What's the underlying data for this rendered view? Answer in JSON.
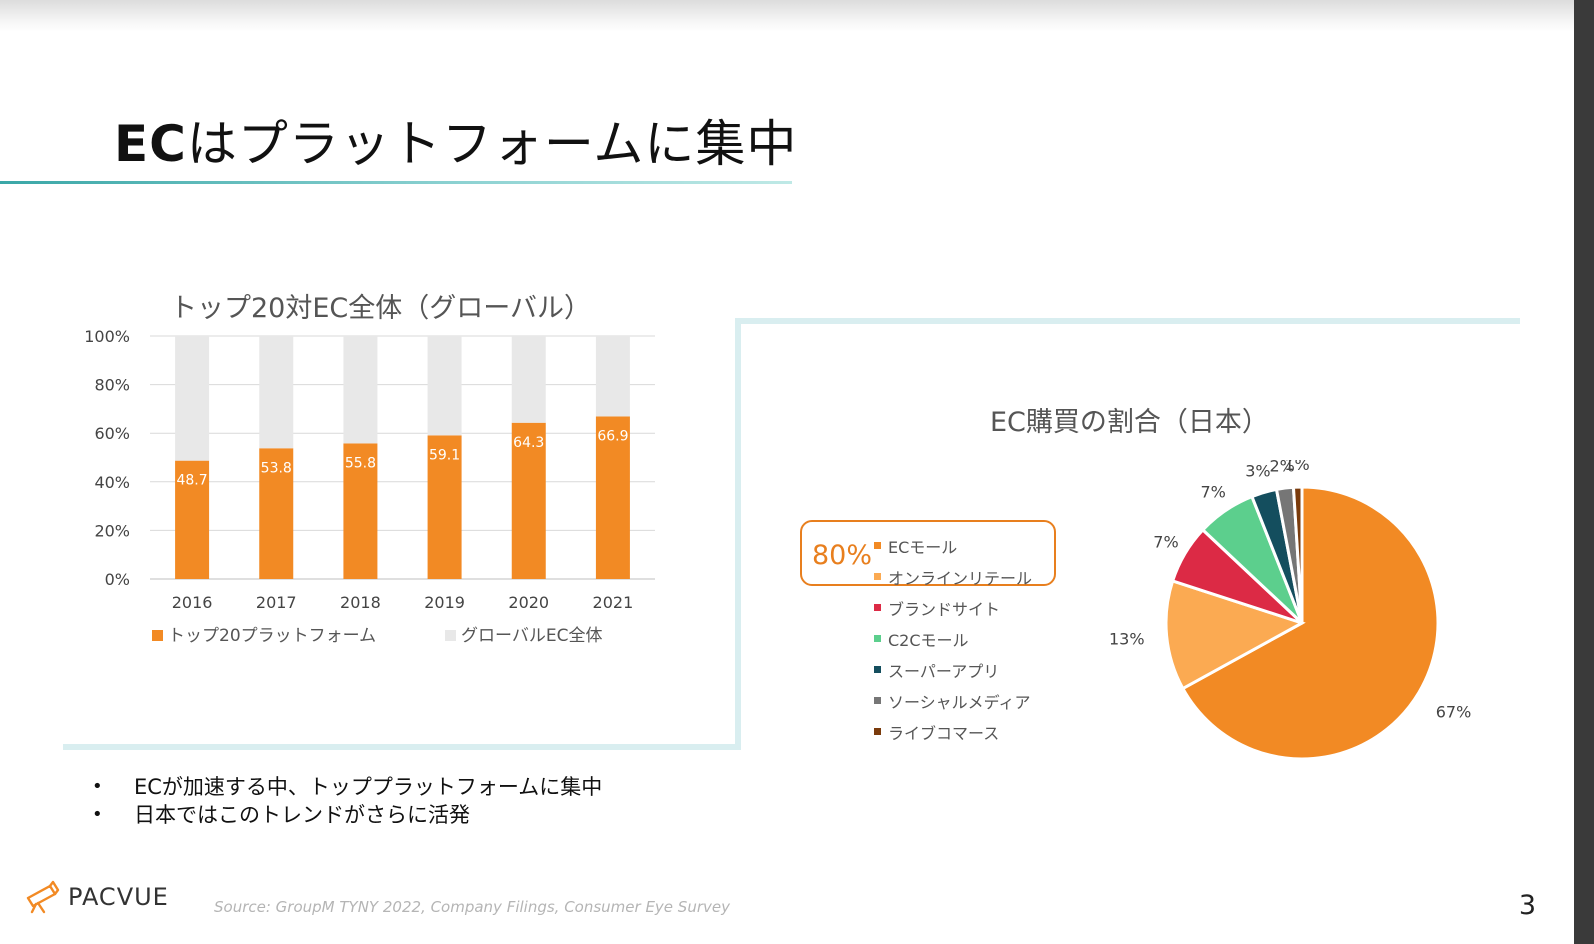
{
  "slide": {
    "title_bold": "EC",
    "title_rest": "はプラットフォームに集中",
    "page_number": "3",
    "source": "Source: GroupM TYNY 2022, Company Filings, Consumer Eye Survey",
    "logo_text": "PACVUE",
    "bullets": [
      "ECが加速する中、トッププラットフォームに集中",
      "日本ではこのトレンドがさらに活発"
    ],
    "highlight": "80%",
    "colors": {
      "accent": "#f28a24",
      "teal_rule": "#3aa7a7",
      "frame": "#d9eef0"
    }
  },
  "chart_data": [
    {
      "type": "bar",
      "stacked": true,
      "title": "トップ20対EC全体（グローバル）",
      "categories": [
        "2016",
        "2017",
        "2018",
        "2019",
        "2020",
        "2021"
      ],
      "series": [
        {
          "name": "トップ20プラットフォーム",
          "values": [
            48.7,
            53.8,
            55.8,
            59.1,
            64.3,
            66.9
          ],
          "color": "#f28a24"
        },
        {
          "name": "グローバルEC全体",
          "values": [
            51.3,
            46.2,
            44.2,
            40.9,
            35.7,
            33.1
          ],
          "color": "#e8e8e8"
        }
      ],
      "data_labels": [
        "48.7",
        "53.8",
        "55.8",
        "59.1",
        "64.3",
        "66.9"
      ],
      "yticks": [
        "0%",
        "20%",
        "40%",
        "60%",
        "80%",
        "100%"
      ],
      "ylim": [
        0,
        100
      ],
      "grid": true,
      "legend": "bottom"
    },
    {
      "type": "pie",
      "title": "EC購買の割合（日本）",
      "labels": [
        "ECモール",
        "オンラインリテール",
        "ブランドサイト",
        "C2Cモール",
        "スーパーアプリ",
        "ソーシャルメディア",
        "ライブコマース"
      ],
      "values": [
        67,
        13,
        7,
        7,
        3,
        2,
        1
      ],
      "value_labels": [
        "67%",
        "13%",
        "7%",
        "7%",
        "3%",
        "2%",
        "1%"
      ],
      "colors": [
        "#f28a24",
        "#fbaa52",
        "#dc2a45",
        "#5ccf8d",
        "#144e5e",
        "#767676",
        "#7a3b0c"
      ],
      "legend": "left"
    }
  ]
}
